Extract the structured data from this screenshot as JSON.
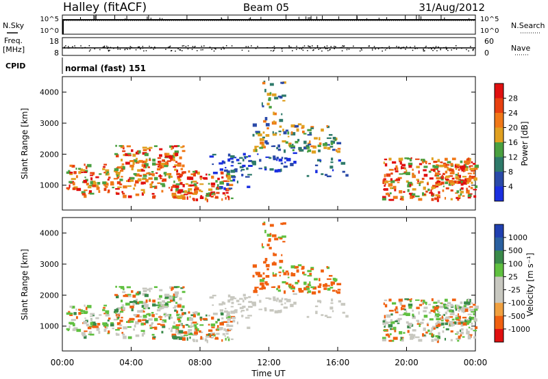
{
  "header": {
    "station": "Halley (fitACF)",
    "beam": "Beam 05",
    "date": "31/Aug/2012"
  },
  "noise_panel": {
    "left_label": "N.Sky",
    "right_label": "N.Search",
    "tick_top": "10^5",
    "tick_bottom": "10^0"
  },
  "freq_panel": {
    "left_label_line1": "Freq.",
    "left_label_line2": "[MHz]",
    "left_tick_top": "18",
    "left_tick_bottom": "8",
    "right_label": "Nave",
    "right_tick_top": "60",
    "right_tick_bottom": "0"
  },
  "cpid": {
    "label": "CPID",
    "mode_text": "normal (fast) 151"
  },
  "colors": {
    "power_scale": [
      "#1a2fe0",
      "#2a4aa8",
      "#2e7a6a",
      "#4aa040",
      "#e0a020",
      "#f07818",
      "#e84010",
      "#e01010"
    ],
    "velocity_scale": [
      "#e01010",
      "#f06010",
      "#f0a040",
      "#c8c8c0",
      "#c8c8c0",
      "#60c040",
      "#3a8a4a",
      "#2a60a0",
      "#2040b0"
    ]
  },
  "chart_data": [
    {
      "type": "heatmap",
      "name": "power",
      "ylabel": "Slant Range [km]",
      "xlabel": "",
      "colorbar_label": "Power [dB]",
      "colorbar_ticks": [
        "28",
        "24",
        "20",
        "16",
        "12",
        "8",
        "4"
      ],
      "y_ticks": [
        "4000",
        "3000",
        "2000",
        "1000"
      ],
      "ylim": [
        200,
        4500
      ],
      "xlim": [
        0,
        24
      ],
      "grid": false
    },
    {
      "type": "heatmap",
      "name": "velocity",
      "ylabel": "Slant Range [km]",
      "xlabel": "Time UT",
      "colorbar_label": "Velocity [m s⁻¹]",
      "colorbar_ticks": [
        "1000",
        "500",
        "100",
        "25",
        "-25",
        "-100",
        "-500",
        "-1000"
      ],
      "y_ticks": [
        "4000",
        "3000",
        "2000",
        "1000"
      ],
      "x_ticks": [
        "00:00",
        "04:00",
        "08:00",
        "12:00",
        "16:00",
        "20:00",
        "00:00"
      ],
      "ylim": [
        200,
        4500
      ],
      "xlim": [
        0,
        24
      ],
      "grid": false
    }
  ]
}
